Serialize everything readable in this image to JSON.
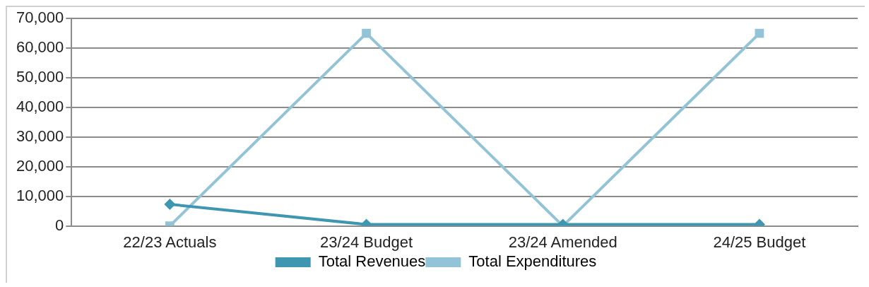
{
  "chart_data": {
    "type": "line",
    "categories": [
      "22/23 Actuals",
      "23/24 Budget",
      "23/24 Amended",
      "24/25 Budget"
    ],
    "series": [
      {
        "name": "Total Revenues",
        "color": "#3f96b0",
        "marker": "diamond",
        "values": [
          7300,
          500,
          500,
          500
        ]
      },
      {
        "name": "Total Expenditures",
        "color": "#93c3d6",
        "marker": "square",
        "values": [
          0,
          65000,
          0,
          65000
        ]
      }
    ],
    "ylim": [
      0,
      70000
    ],
    "yticks": [
      {
        "value": 0,
        "label": "0"
      },
      {
        "value": 10000,
        "label": "10,000"
      },
      {
        "value": 20000,
        "label": "20,000"
      },
      {
        "value": 30000,
        "label": "30,000"
      },
      {
        "value": 40000,
        "label": "40,000"
      },
      {
        "value": 50000,
        "label": "50,000"
      },
      {
        "value": 60000,
        "label": "60,000"
      },
      {
        "value": 70000,
        "label": "70,000"
      }
    ],
    "grid": "y",
    "legend": "bottom"
  }
}
